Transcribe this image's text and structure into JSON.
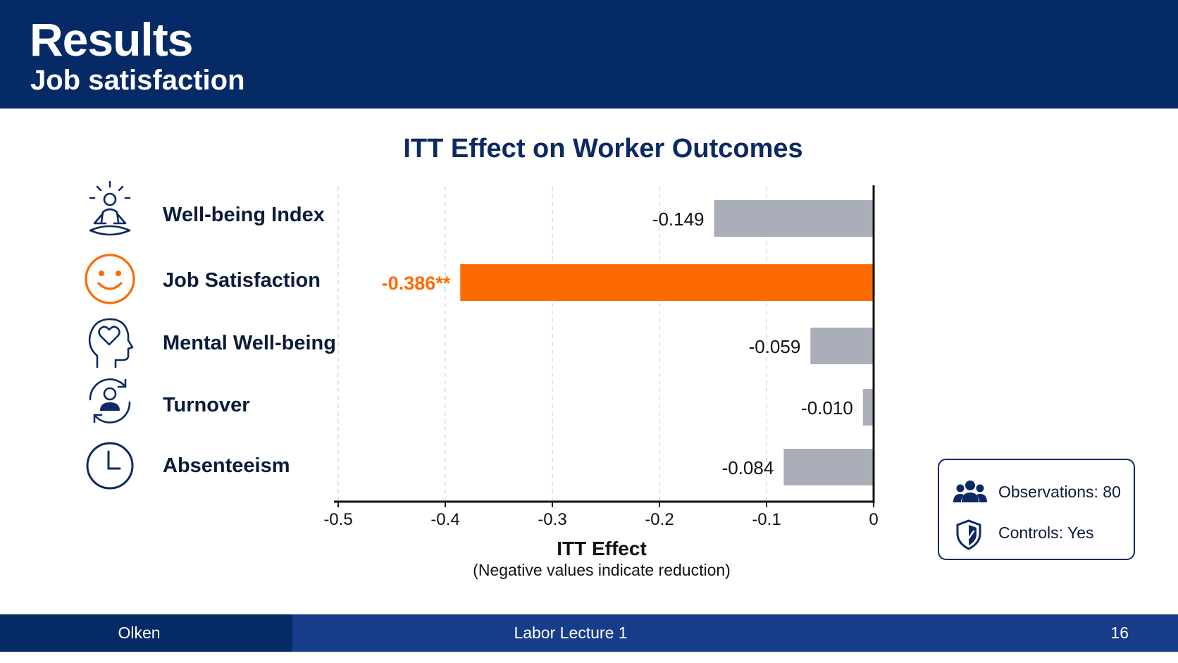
{
  "header": {
    "title": "Results",
    "subtitle": "Job satisfaction"
  },
  "metrics": [
    {
      "label": "Well-being Index",
      "icon": "meditation-icon"
    },
    {
      "label": "Job Satisfaction",
      "icon": "smiley-face-icon"
    },
    {
      "label": "Mental Well-being",
      "icon": "head-heart-icon"
    },
    {
      "label": "Turnover",
      "icon": "person-cycle-icon"
    },
    {
      "label": "Absenteeism",
      "icon": "clock-icon"
    }
  ],
  "chart_data": {
    "type": "bar",
    "orientation": "horizontal",
    "title": "ITT Effect on Worker Outcomes",
    "xlabel": "ITT Effect",
    "xlabel_note": "(Negative values indicate reduction)",
    "categories": [
      "Well-being Index",
      "Job Satisfaction",
      "Mental Well-being",
      "Turnover",
      "Absenteeism"
    ],
    "values": [
      -0.149,
      -0.386,
      -0.059,
      -0.01,
      -0.084
    ],
    "value_labels": [
      "-0.149",
      "-0.386**",
      "-0.059",
      "-0.010",
      "-0.084"
    ],
    "highlight": [
      false,
      true,
      false,
      false,
      false
    ],
    "xlim": [
      -0.5,
      0
    ],
    "xticks": [
      -0.5,
      -0.4,
      -0.3,
      -0.2,
      -0.1,
      0
    ],
    "xtick_labels": [
      "-0.5",
      "-0.4",
      "-0.3",
      "-0.2",
      "-0.1",
      "0"
    ],
    "grid": true,
    "colors": {
      "default": "#a9aeb8",
      "highlight": "#ff6a00",
      "highlight_text": "#ff6a00",
      "axis": "#111111"
    }
  },
  "stats": {
    "observations": "Observations: 80",
    "controls": "Controls: Yes"
  },
  "footer": {
    "author": "Olken",
    "course": "Labor Lecture 1",
    "page": "16"
  }
}
